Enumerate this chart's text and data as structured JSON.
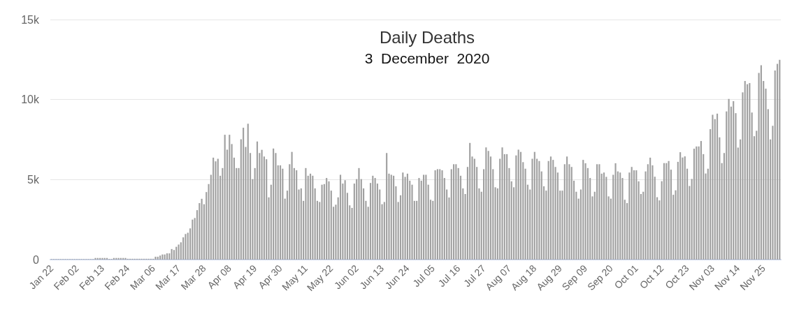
{
  "chart_data": {
    "type": "bar",
    "title": "Daily Deaths",
    "subtitle": "3  December  2020",
    "categories": [
      "Jan 22",
      null,
      null,
      null,
      null,
      null,
      null,
      null,
      null,
      null,
      null,
      "Feb 02",
      null,
      null,
      null,
      null,
      null,
      null,
      null,
      null,
      null,
      null,
      "Feb 13",
      null,
      null,
      null,
      null,
      null,
      null,
      null,
      null,
      null,
      null,
      "Feb 24",
      null,
      null,
      null,
      null,
      null,
      null,
      null,
      null,
      null,
      null,
      "Mar 06",
      null,
      null,
      null,
      null,
      null,
      null,
      null,
      null,
      null,
      null,
      "Mar 17",
      null,
      null,
      null,
      null,
      null,
      null,
      null,
      null,
      null,
      null,
      "Mar 28",
      null,
      null,
      null,
      null,
      null,
      null,
      null,
      null,
      null,
      null,
      "Apr 08",
      null,
      null,
      null,
      null,
      null,
      null,
      null,
      null,
      null,
      null,
      "Apr 19",
      null,
      null,
      null,
      null,
      null,
      null,
      null,
      null,
      null,
      null,
      "Apr 30",
      null,
      null,
      null,
      null,
      null,
      null,
      null,
      null,
      null,
      null,
      "May 11",
      null,
      null,
      null,
      null,
      null,
      null,
      null,
      null,
      null,
      null,
      "May 22",
      null,
      null,
      null,
      null,
      null,
      null,
      null,
      null,
      null,
      null,
      "Jun 02",
      null,
      null,
      null,
      null,
      null,
      null,
      null,
      null,
      null,
      null,
      "Jun 13",
      null,
      null,
      null,
      null,
      null,
      null,
      null,
      null,
      null,
      null,
      "Jun 24",
      null,
      null,
      null,
      null,
      null,
      null,
      null,
      null,
      null,
      null,
      "Jul 05",
      null,
      null,
      null,
      null,
      null,
      null,
      null,
      null,
      null,
      null,
      "Jul 16",
      null,
      null,
      null,
      null,
      null,
      null,
      null,
      null,
      null,
      null,
      "Jul 27",
      null,
      null,
      null,
      null,
      null,
      null,
      null,
      null,
      null,
      null,
      "Aug 07",
      null,
      null,
      null,
      null,
      null,
      null,
      null,
      null,
      null,
      null,
      "Aug 18",
      null,
      null,
      null,
      null,
      null,
      null,
      null,
      null,
      null,
      null,
      "Aug 29",
      null,
      null,
      null,
      null,
      null,
      null,
      null,
      null,
      null,
      null,
      "Sep 09",
      null,
      null,
      null,
      null,
      null,
      null,
      null,
      null,
      null,
      null,
      "Sep 20",
      null,
      null,
      null,
      null,
      null,
      null,
      null,
      null,
      null,
      null,
      "Oct 01",
      null,
      null,
      null,
      null,
      null,
      null,
      null,
      null,
      null,
      null,
      "Oct 12",
      null,
      null,
      null,
      null,
      null,
      null,
      null,
      null,
      null,
      null,
      "Oct 23",
      null,
      null,
      null,
      null,
      null,
      null,
      null,
      null,
      null,
      null,
      "Nov 03",
      null,
      null,
      null,
      null,
      null,
      null,
      null,
      null,
      null,
      null,
      "Nov 14",
      null,
      null,
      null,
      null,
      null,
      null,
      null,
      null,
      null,
      null,
      "Nov 25",
      null,
      null,
      null,
      null,
      null,
      null,
      null
    ],
    "values": [
      30,
      30,
      30,
      30,
      30,
      30,
      30,
      30,
      30,
      30,
      30,
      30,
      30,
      30,
      30,
      30,
      30,
      30,
      30,
      100,
      100,
      100,
      100,
      100,
      100,
      40,
      40,
      100,
      100,
      100,
      100,
      100,
      100,
      50,
      50,
      50,
      50,
      50,
      50,
      50,
      50,
      50,
      50,
      50,
      50,
      180,
      180,
      250,
      320,
      320,
      390,
      390,
      660,
      600,
      800,
      940,
      1080,
      1390,
      1600,
      1680,
      1950,
      2500,
      2600,
      3090,
      3530,
      3800,
      3460,
      4220,
      4720,
      5300,
      6370,
      6140,
      6300,
      5240,
      5720,
      7800,
      6870,
      7800,
      7220,
      6370,
      5720,
      5720,
      7520,
      8240,
      7040,
      8490,
      6660,
      5030,
      5720,
      7380,
      6660,
      6860,
      6440,
      6270,
      3890,
      4680,
      6940,
      6660,
      5890,
      5890,
      5680,
      3810,
      4310,
      5960,
      6730,
      5720,
      5580,
      4380,
      4450,
      3670,
      5720,
      5240,
      5370,
      5240,
      4450,
      3670,
      3600,
      4680,
      4720,
      5100,
      4890,
      4310,
      3300,
      3430,
      3890,
      5300,
      4750,
      4960,
      4170,
      3390,
      3230,
      4750,
      5030,
      5720,
      5030,
      4450,
      3670,
      3300,
      4790,
      5240,
      5100,
      4750,
      4380,
      3460,
      3600,
      6660,
      5370,
      5300,
      5240,
      4580,
      3600,
      4020,
      5440,
      5170,
      5370,
      4930,
      4680,
      3670,
      3670,
      5100,
      4930,
      5300,
      5300,
      4680,
      3740,
      3670,
      5580,
      5650,
      5650,
      5580,
      5100,
      4380,
      3880,
      5650,
      5960,
      5960,
      5720,
      5240,
      4450,
      4100,
      5790,
      7290,
      6440,
      6300,
      5790,
      4450,
      4240,
      5650,
      7010,
      6790,
      6440,
      5650,
      4520,
      4450,
      6300,
      7010,
      6590,
      6590,
      5720,
      4890,
      4520,
      6510,
      6870,
      6730,
      6090,
      5680,
      4680,
      4380,
      6300,
      6730,
      6300,
      6160,
      5510,
      4580,
      4310,
      6160,
      6440,
      6230,
      5790,
      5440,
      4310,
      4310,
      5960,
      6440,
      5960,
      5790,
      4930,
      4240,
      3810,
      4380,
      6230,
      6020,
      5720,
      5100,
      3950,
      4240,
      5960,
      5960,
      5370,
      5440,
      5170,
      3950,
      3810,
      5300,
      6020,
      5510,
      5440,
      5100,
      3740,
      3530,
      5440,
      5790,
      5580,
      5580,
      4890,
      4100,
      4240,
      5510,
      5960,
      6370,
      5890,
      5180,
      3900,
      3700,
      4900,
      6030,
      6030,
      6160,
      5620,
      4050,
      4330,
      6110,
      6710,
      6380,
      6450,
      5680,
      4600,
      5040,
      6930,
      7070,
      7070,
      7410,
      6590,
      5380,
      5680,
      8150,
      9050,
      8780,
      9120,
      7640,
      6030,
      6660,
      9260,
      10040,
      9560,
      9900,
      9150,
      7000,
      7510,
      10450,
      11160,
      10960,
      11030,
      9190,
      7710,
      8050,
      11660,
      12140,
      11160,
      10680,
      9400,
      7510,
      8360,
      11820,
      12230,
      12480
    ],
    "color": "#a0a0a0",
    "ylim": [
      0,
      15000
    ],
    "yticks": [
      0,
      {
        "value": 5000,
        "label": "5k"
      },
      {
        "value": 10000,
        "label": "10k"
      },
      {
        "value": 15000,
        "label": "15k"
      }
    ],
    "grid": "y"
  }
}
